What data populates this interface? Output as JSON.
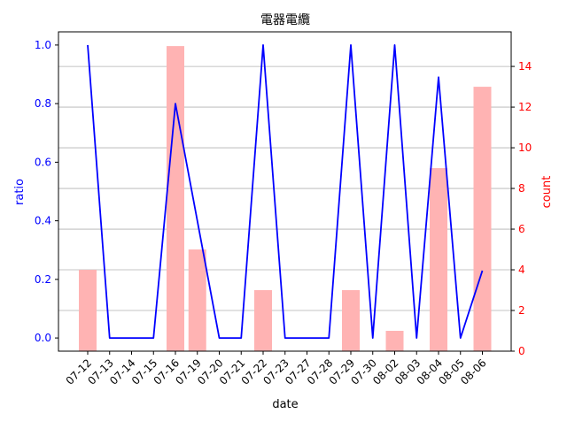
{
  "chart_data": {
    "type": "bar+line",
    "title": "電器電纜",
    "xlabel": "date",
    "ylabel_left": "ratio",
    "ylabel_right": "count",
    "categories": [
      "07-12",
      "07-13",
      "07-14",
      "07-15",
      "07-16",
      "07-19",
      "07-20",
      "07-21",
      "07-22",
      "07-23",
      "07-27",
      "07-28",
      "07-29",
      "07-30",
      "08-02",
      "08-03",
      "08-04",
      "08-05",
      "08-06"
    ],
    "left_ylim": [
      -0.045,
      1.045
    ],
    "left_ticks": [
      0.0,
      0.2,
      0.4,
      0.6,
      0.8,
      1.0
    ],
    "left_tick_labels": [
      "0.0",
      "0.2",
      "0.4",
      "0.6",
      "0.8",
      "1.0"
    ],
    "right_ylim": [
      0,
      15.7
    ],
    "right_ticks": [
      0,
      2,
      4,
      6,
      8,
      10,
      12,
      14
    ],
    "right_tick_labels": [
      "0",
      "2",
      "4",
      "6",
      "8",
      "10",
      "12",
      "14"
    ],
    "grid": "horizontal lines at right-axis ticks",
    "series": [
      {
        "kind": "line",
        "axis": "left",
        "color": "#0000ff",
        "values": [
          1.0,
          0.0,
          0.0,
          0.0,
          0.8,
          0.4,
          0.0,
          0.0,
          1.0,
          0.0,
          0.0,
          0.0,
          1.0,
          0.0,
          1.0,
          0.0,
          0.89,
          0.0,
          0.23
        ]
      },
      {
        "kind": "bar",
        "axis": "right",
        "color": "#ffb3b3",
        "values": [
          4,
          0,
          0,
          0,
          15,
          5,
          0,
          0,
          3,
          0,
          0,
          0,
          3,
          0,
          1,
          0,
          9,
          0,
          13
        ]
      }
    ],
    "left_axis_color": "#0000ff",
    "right_axis_color": "#ff0000"
  }
}
